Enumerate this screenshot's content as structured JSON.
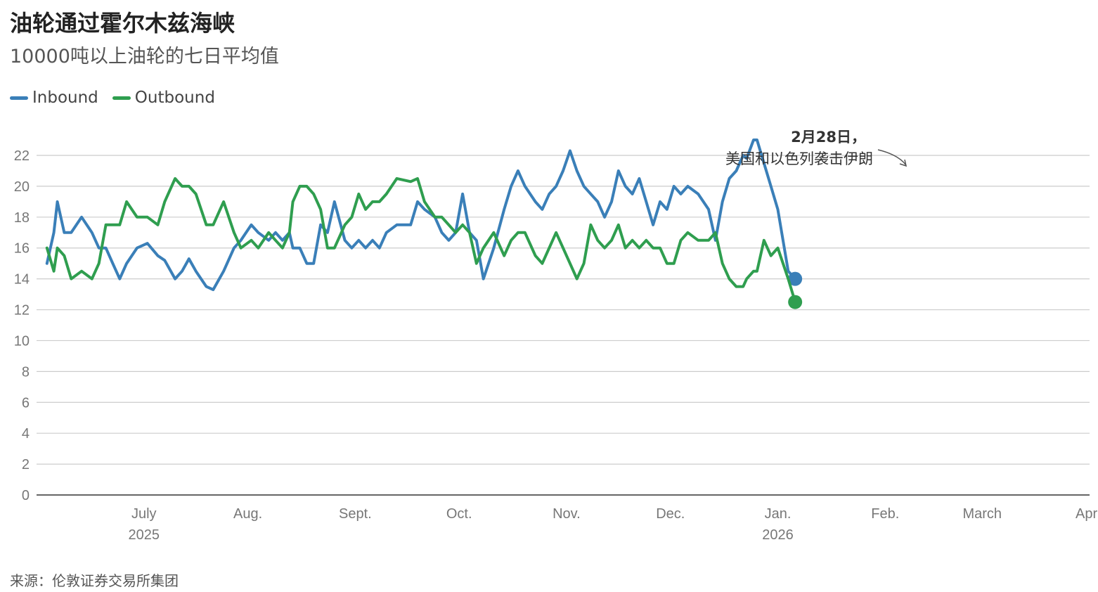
{
  "title": "油轮通过霍尔木兹海峡",
  "subtitle": "10000吨以上油轮的七日平均值",
  "source": "来源：伦敦证券交易所集团",
  "colors": {
    "inbound": "#3a7fb8",
    "outbound": "#2f9e4f",
    "grid": "#cccccc",
    "axis": "#333333"
  },
  "chart_data": {
    "type": "line",
    "title": "油轮通过霍尔木兹海峡",
    "ylim": [
      0,
      22
    ],
    "yticks": [
      0,
      2,
      4,
      6,
      8,
      10,
      12,
      14,
      16,
      18,
      20,
      22
    ],
    "xlim": [
      "2025-06-15",
      "2026-04-15"
    ],
    "xticks": [
      {
        "date": "2025-07-16",
        "label": "July",
        "sub": "2025"
      },
      {
        "date": "2025-08-15",
        "label": "Aug.",
        "sub": ""
      },
      {
        "date": "2025-09-15",
        "label": "Sept.",
        "sub": ""
      },
      {
        "date": "2025-10-15",
        "label": "Oct.",
        "sub": ""
      },
      {
        "date": "2025-11-15",
        "label": "Nov.",
        "sub": ""
      },
      {
        "date": "2025-12-15",
        "label": "Dec.",
        "sub": ""
      },
      {
        "date": "2026-01-15",
        "label": "Jan.",
        "sub": "2026"
      },
      {
        "date": "2026-02-15",
        "label": "Feb.",
        "sub": ""
      },
      {
        "date": "2026-03-15",
        "label": "March",
        "sub": ""
      },
      {
        "date": "2026-04-15",
        "label": "April",
        "sub": ""
      }
    ],
    "legend": "top-left",
    "grid": true,
    "series": [
      {
        "name": "Inbound",
        "color": "#3a7fb8",
        "points": [
          [
            "2025-06-18",
            15.0
          ],
          [
            "2025-06-20",
            17.0
          ],
          [
            "2025-06-21",
            19.0
          ],
          [
            "2025-06-23",
            17.0
          ],
          [
            "2025-06-25",
            17.0
          ],
          [
            "2025-06-28",
            18.0
          ],
          [
            "2025-07-01",
            17.0
          ],
          [
            "2025-07-03",
            16.0
          ],
          [
            "2025-07-05",
            16.0
          ],
          [
            "2025-07-07",
            15.0
          ],
          [
            "2025-07-09",
            14.0
          ],
          [
            "2025-07-11",
            15.0
          ],
          [
            "2025-07-14",
            16.0
          ],
          [
            "2025-07-17",
            16.3
          ],
          [
            "2025-07-20",
            15.5
          ],
          [
            "2025-07-22",
            15.2
          ],
          [
            "2025-07-25",
            14.0
          ],
          [
            "2025-07-27",
            14.5
          ],
          [
            "2025-07-29",
            15.3
          ],
          [
            "2025-07-31",
            14.5
          ],
          [
            "2025-08-03",
            13.5
          ],
          [
            "2025-08-05",
            13.3
          ],
          [
            "2025-08-08",
            14.5
          ],
          [
            "2025-08-11",
            16.0
          ],
          [
            "2025-08-13",
            16.5
          ],
          [
            "2025-08-16",
            17.5
          ],
          [
            "2025-08-18",
            17.0
          ],
          [
            "2025-08-21",
            16.5
          ],
          [
            "2025-08-23",
            17.0
          ],
          [
            "2025-08-25",
            16.5
          ],
          [
            "2025-08-27",
            17.0
          ],
          [
            "2025-08-28",
            16.0
          ],
          [
            "2025-08-30",
            16.0
          ],
          [
            "2025-09-01",
            15.0
          ],
          [
            "2025-09-03",
            15.0
          ],
          [
            "2025-09-05",
            17.5
          ],
          [
            "2025-09-07",
            17.0
          ],
          [
            "2025-09-09",
            19.0
          ],
          [
            "2025-09-12",
            16.5
          ],
          [
            "2025-09-14",
            16.0
          ],
          [
            "2025-09-16",
            16.5
          ],
          [
            "2025-09-18",
            16.0
          ],
          [
            "2025-09-20",
            16.5
          ],
          [
            "2025-09-22",
            16.0
          ],
          [
            "2025-09-24",
            17.0
          ],
          [
            "2025-09-27",
            17.5
          ],
          [
            "2025-10-01",
            17.5
          ],
          [
            "2025-10-03",
            19.0
          ],
          [
            "2025-10-05",
            18.5
          ],
          [
            "2025-10-08",
            18.0
          ],
          [
            "2025-10-10",
            17.0
          ],
          [
            "2025-10-12",
            16.5
          ],
          [
            "2025-10-14",
            17.0
          ],
          [
            "2025-10-16",
            19.5
          ],
          [
            "2025-10-18",
            17.0
          ],
          [
            "2025-10-20",
            16.5
          ],
          [
            "2025-10-22",
            14.0
          ],
          [
            "2025-10-25",
            16.0
          ],
          [
            "2025-10-28",
            18.5
          ],
          [
            "2025-10-30",
            20.0
          ],
          [
            "2025-11-01",
            21.0
          ],
          [
            "2025-11-03",
            20.0
          ],
          [
            "2025-11-06",
            19.0
          ],
          [
            "2025-11-08",
            18.5
          ],
          [
            "2025-11-10",
            19.5
          ],
          [
            "2025-11-12",
            20.0
          ],
          [
            "2025-11-14",
            21.0
          ],
          [
            "2025-11-16",
            22.3
          ],
          [
            "2025-11-18",
            21.0
          ],
          [
            "2025-11-20",
            20.0
          ],
          [
            "2025-11-22",
            19.5
          ],
          [
            "2025-11-24",
            19.0
          ],
          [
            "2025-11-26",
            18.0
          ],
          [
            "2025-11-28",
            19.0
          ],
          [
            "2025-11-30",
            21.0
          ],
          [
            "2025-12-02",
            20.0
          ],
          [
            "2025-12-04",
            19.5
          ],
          [
            "2025-12-06",
            20.5
          ],
          [
            "2025-12-08",
            19.0
          ],
          [
            "2025-12-10",
            17.5
          ],
          [
            "2025-12-12",
            19.0
          ],
          [
            "2025-12-14",
            18.5
          ],
          [
            "2025-12-16",
            20.0
          ],
          [
            "2025-12-18",
            19.5
          ],
          [
            "2025-12-20",
            20.0
          ],
          [
            "2025-12-23",
            19.5
          ],
          [
            "2025-12-26",
            18.5
          ],
          [
            "2025-12-28",
            16.5
          ],
          [
            "2025-12-30",
            19.0
          ],
          [
            "2026-01-01",
            20.5
          ],
          [
            "2026-01-03",
            21.0
          ],
          [
            "2026-01-05",
            22.0
          ],
          [
            "2026-01-06",
            21.8
          ],
          [
            "2026-01-08",
            23.0
          ],
          [
            "2026-01-09",
            23.0
          ],
          [
            "2026-01-11",
            21.5
          ],
          [
            "2026-01-13",
            20.0
          ],
          [
            "2026-01-15",
            18.5
          ],
          [
            "2026-01-18",
            14.5
          ],
          [
            "2026-01-20",
            14.0
          ]
        ]
      },
      {
        "name": "Outbound",
        "color": "#2f9e4f",
        "points": [
          [
            "2025-06-18",
            16.0
          ],
          [
            "2025-06-20",
            14.5
          ],
          [
            "2025-06-21",
            16.0
          ],
          [
            "2025-06-23",
            15.5
          ],
          [
            "2025-06-25",
            14.0
          ],
          [
            "2025-06-28",
            14.5
          ],
          [
            "2025-07-01",
            14.0
          ],
          [
            "2025-07-03",
            15.0
          ],
          [
            "2025-07-05",
            17.5
          ],
          [
            "2025-07-07",
            17.5
          ],
          [
            "2025-07-09",
            17.5
          ],
          [
            "2025-07-11",
            19.0
          ],
          [
            "2025-07-14",
            18.0
          ],
          [
            "2025-07-17",
            18.0
          ],
          [
            "2025-07-20",
            17.5
          ],
          [
            "2025-07-22",
            19.0
          ],
          [
            "2025-07-25",
            20.5
          ],
          [
            "2025-07-27",
            20.0
          ],
          [
            "2025-07-29",
            20.0
          ],
          [
            "2025-07-31",
            19.5
          ],
          [
            "2025-08-03",
            17.5
          ],
          [
            "2025-08-05",
            17.5
          ],
          [
            "2025-08-08",
            19.0
          ],
          [
            "2025-08-11",
            17.0
          ],
          [
            "2025-08-13",
            16.0
          ],
          [
            "2025-08-16",
            16.5
          ],
          [
            "2025-08-18",
            16.0
          ],
          [
            "2025-08-21",
            17.0
          ],
          [
            "2025-08-23",
            16.5
          ],
          [
            "2025-08-25",
            16.0
          ],
          [
            "2025-08-27",
            17.0
          ],
          [
            "2025-08-28",
            19.0
          ],
          [
            "2025-08-30",
            20.0
          ],
          [
            "2025-09-01",
            20.0
          ],
          [
            "2025-09-03",
            19.5
          ],
          [
            "2025-09-05",
            18.5
          ],
          [
            "2025-09-07",
            16.0
          ],
          [
            "2025-09-09",
            16.0
          ],
          [
            "2025-09-12",
            17.5
          ],
          [
            "2025-09-14",
            18.0
          ],
          [
            "2025-09-16",
            19.5
          ],
          [
            "2025-09-18",
            18.5
          ],
          [
            "2025-09-20",
            19.0
          ],
          [
            "2025-09-22",
            19.0
          ],
          [
            "2025-09-24",
            19.5
          ],
          [
            "2025-09-27",
            20.5
          ],
          [
            "2025-10-01",
            20.3
          ],
          [
            "2025-10-03",
            20.5
          ],
          [
            "2025-10-05",
            19.0
          ],
          [
            "2025-10-08",
            18.0
          ],
          [
            "2025-10-10",
            18.0
          ],
          [
            "2025-10-12",
            17.5
          ],
          [
            "2025-10-14",
            17.0
          ],
          [
            "2025-10-16",
            17.5
          ],
          [
            "2025-10-18",
            17.0
          ],
          [
            "2025-10-20",
            15.0
          ],
          [
            "2025-10-22",
            16.0
          ],
          [
            "2025-10-25",
            17.0
          ],
          [
            "2025-10-28",
            15.5
          ],
          [
            "2025-10-30",
            16.5
          ],
          [
            "2025-11-01",
            17.0
          ],
          [
            "2025-11-03",
            17.0
          ],
          [
            "2025-11-06",
            15.5
          ],
          [
            "2025-11-08",
            15.0
          ],
          [
            "2025-11-10",
            16.0
          ],
          [
            "2025-11-12",
            17.0
          ],
          [
            "2025-11-14",
            16.0
          ],
          [
            "2025-11-16",
            15.0
          ],
          [
            "2025-11-18",
            14.0
          ],
          [
            "2025-11-20",
            15.0
          ],
          [
            "2025-11-22",
            17.5
          ],
          [
            "2025-11-24",
            16.5
          ],
          [
            "2025-11-26",
            16.0
          ],
          [
            "2025-11-28",
            16.5
          ],
          [
            "2025-11-30",
            17.5
          ],
          [
            "2025-12-02",
            16.0
          ],
          [
            "2025-12-04",
            16.5
          ],
          [
            "2025-12-06",
            16.0
          ],
          [
            "2025-12-08",
            16.5
          ],
          [
            "2025-12-10",
            16.0
          ],
          [
            "2025-12-12",
            16.0
          ],
          [
            "2025-12-14",
            15.0
          ],
          [
            "2025-12-16",
            15.0
          ],
          [
            "2025-12-18",
            16.5
          ],
          [
            "2025-12-20",
            17.0
          ],
          [
            "2025-12-23",
            16.5
          ],
          [
            "2025-12-26",
            16.5
          ],
          [
            "2025-12-28",
            17.0
          ],
          [
            "2025-12-30",
            15.0
          ],
          [
            "2026-01-01",
            14.0
          ],
          [
            "2026-01-03",
            13.5
          ],
          [
            "2026-01-05",
            13.5
          ],
          [
            "2026-01-06",
            14.0
          ],
          [
            "2026-01-08",
            14.5
          ],
          [
            "2026-01-09",
            14.5
          ],
          [
            "2026-01-11",
            16.5
          ],
          [
            "2026-01-13",
            15.5
          ],
          [
            "2026-01-15",
            16.0
          ],
          [
            "2026-01-18",
            14.0
          ],
          [
            "2026-01-20",
            12.5
          ]
        ]
      }
    ],
    "annotation": {
      "line1": "2月28日，",
      "line2": "美国和以色列袭击伊朗",
      "date": "2026-02-28"
    }
  }
}
